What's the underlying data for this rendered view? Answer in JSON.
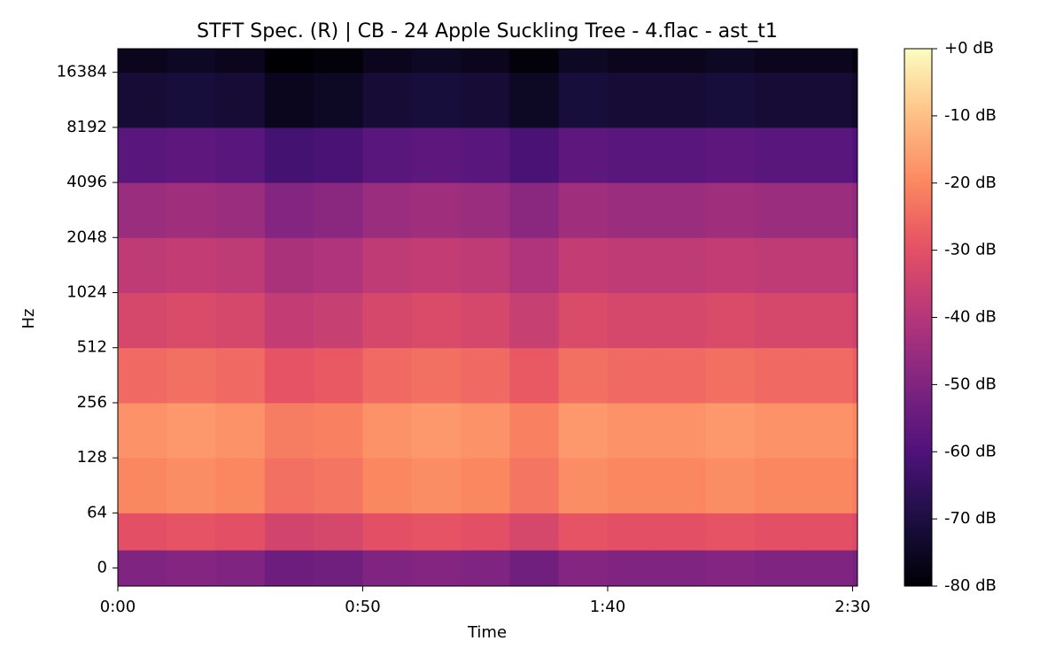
{
  "chart_data": {
    "type": "heatmap",
    "title": "STFT Spec. (R) | CB - 24 Apple Suckling Tree - 4.flac - ast_t1",
    "x_label": "Time",
    "y_label": "Hz",
    "xlim": [
      0,
      151
    ],
    "xticks": [
      {
        "value": 0,
        "label": "0:00"
      },
      {
        "value": 50,
        "label": "0:50"
      },
      {
        "value": 100,
        "label": "1:40"
      },
      {
        "value": 150,
        "label": "2:30"
      }
    ],
    "ylim": [
      -21,
      22050
    ],
    "yscale": "symlog",
    "linthresh": 64,
    "yticks": [
      0,
      64,
      128,
      256,
      512,
      1024,
      2048,
      4096,
      8192,
      16384
    ],
    "colormap": "magma",
    "clim": [
      -80,
      0
    ],
    "cticks": [
      {
        "value": 0,
        "label": "+0 dB"
      },
      {
        "value": -10,
        "label": "-10 dB"
      },
      {
        "value": -20,
        "label": "-20 dB"
      },
      {
        "value": -30,
        "label": "-30 dB"
      },
      {
        "value": -40,
        "label": "-40 dB"
      },
      {
        "value": -50,
        "label": "-50 dB"
      },
      {
        "value": -60,
        "label": "-60 dB"
      },
      {
        "value": -70,
        "label": "-70 dB"
      },
      {
        "value": -80,
        "label": "-80 dB"
      }
    ],
    "x_edges": [
      0,
      10,
      20,
      30,
      40,
      50,
      60,
      70,
      80,
      90,
      100,
      110,
      120,
      130,
      140,
      150,
      151
    ],
    "y_edges": [
      -21,
      21,
      64,
      128,
      256,
      512,
      1024,
      2048,
      4096,
      8192,
      16384,
      22050
    ],
    "z": [
      [
        -50,
        -49,
        -50,
        -54,
        -53,
        -50,
        -49,
        -50,
        -53,
        -49,
        -50,
        -50,
        -49,
        -50,
        -50,
        -52
      ],
      [
        -30,
        -29,
        -30,
        -34,
        -33,
        -30,
        -29,
        -30,
        -33,
        -29,
        -30,
        -30,
        -29,
        -30,
        -30,
        -32
      ],
      [
        -20,
        -19,
        -20,
        -24,
        -23,
        -20,
        -19,
        -20,
        -23,
        -19,
        -20,
        -20,
        -19,
        -20,
        -20,
        -22
      ],
      [
        -18,
        -17,
        -18,
        -22,
        -21,
        -18,
        -17,
        -18,
        -21,
        -17,
        -18,
        -18,
        -17,
        -18,
        -18,
        -20
      ],
      [
        -25,
        -24,
        -25,
        -29,
        -28,
        -25,
        -24,
        -25,
        -28,
        -24,
        -25,
        -25,
        -24,
        -25,
        -25,
        -27
      ],
      [
        -33,
        -32,
        -33,
        -37,
        -36,
        -33,
        -32,
        -33,
        -36,
        -32,
        -33,
        -33,
        -32,
        -33,
        -33,
        -35
      ],
      [
        -38,
        -37,
        -38,
        -42,
        -41,
        -38,
        -37,
        -38,
        -41,
        -37,
        -38,
        -38,
        -37,
        -38,
        -38,
        -40
      ],
      [
        -45,
        -44,
        -45,
        -49,
        -48,
        -45,
        -44,
        -45,
        -48,
        -44,
        -45,
        -45,
        -44,
        -45,
        -45,
        -47
      ],
      [
        -58,
        -57,
        -58,
        -62,
        -61,
        -58,
        -57,
        -58,
        -61,
        -57,
        -58,
        -58,
        -57,
        -58,
        -58,
        -60
      ],
      [
        -72,
        -71,
        -72,
        -76,
        -75,
        -72,
        -71,
        -72,
        -75,
        -71,
        -72,
        -72,
        -71,
        -72,
        -72,
        -74
      ],
      [
        -76,
        -75,
        -76,
        -80,
        -79,
        -76,
        -75,
        -76,
        -79,
        -75,
        -76,
        -76,
        -75,
        -76,
        -76,
        -78
      ]
    ]
  }
}
